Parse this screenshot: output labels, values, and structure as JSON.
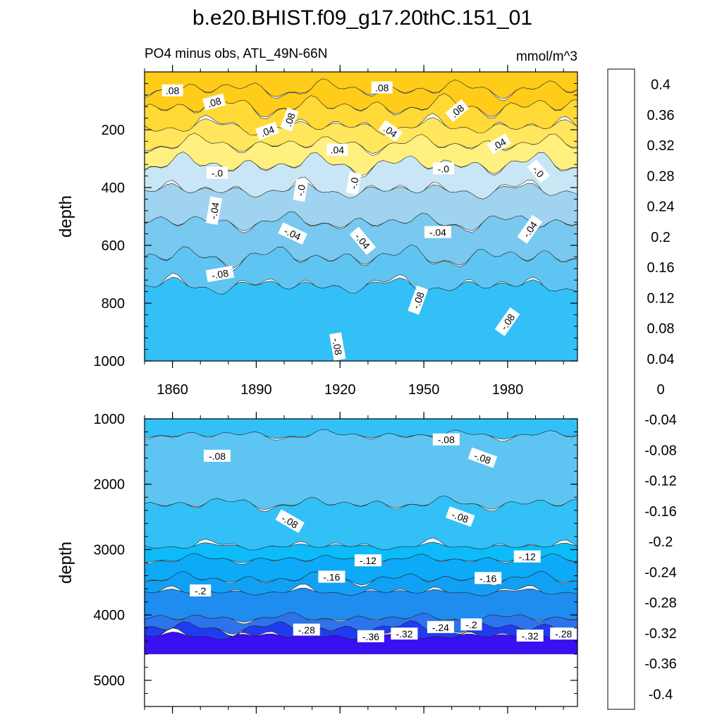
{
  "chart_data": {
    "type": "heatmap",
    "title": "b.e20.BHIST.f09_g17.20thC.151_01",
    "subtitle_left": "PO4 minus obs, ATL_49N-66N",
    "subtitle_right": "mmol/m^3",
    "colorbar": {
      "levels": [
        -0.42,
        -0.4,
        -0.38,
        -0.36,
        -0.34,
        -0.32,
        -0.3,
        -0.28,
        -0.26,
        -0.24,
        -0.22,
        -0.2,
        -0.18,
        -0.16,
        -0.14,
        -0.12,
        -0.1,
        -0.08,
        -0.06,
        -0.04,
        -0.02,
        0,
        0.02,
        0.04,
        0.06,
        0.08,
        0.1,
        0.12,
        0.14,
        0.16,
        0.18,
        0.2,
        0.22,
        0.24,
        0.26,
        0.28,
        0.3,
        0.32,
        0.34,
        0.36,
        0.38,
        0.4,
        0.42
      ],
      "colors": [
        "#8a2be2",
        "#6a1fe0",
        "#4f10e6",
        "#3a0ff0",
        "#1f10f5",
        "#0a1ef5",
        "#1f3cf0",
        "#3350e6",
        "#3d64e6",
        "#2d74ec",
        "#2484f0",
        "#1f8cf0",
        "#1896f2",
        "#12a0f5",
        "#0caaf7",
        "#0dbbf8",
        "#33c0f7",
        "#5ec5f2",
        "#78c8ef",
        "#9fd3ef",
        "#c8e6f5",
        "#fff9b0",
        "#fff080",
        "#ffe65c",
        "#ffd936",
        "#ffcc1a",
        "#ffbd0d",
        "#ffad00",
        "#ff9d00",
        "#ff8c00",
        "#ff7a00",
        "#ff6600",
        "#ff4f00",
        "#ff3300",
        "#ff1a00",
        "#ff0000",
        "#ee0000",
        "#dd0000",
        "#cc1111",
        "#dd4444",
        "#ee7777",
        "#ffb0b0"
      ],
      "tick_labels": [
        "-0.4",
        "-0.36",
        "-0.32",
        "-0.28",
        "-0.24",
        "-0.2",
        "-0.16",
        "-0.12",
        "-0.08",
        "-0.04",
        "0",
        "0.04",
        "0.08",
        "0.12",
        "0.16",
        "0.2",
        "0.24",
        "0.28",
        "0.32",
        "0.36",
        "0.4"
      ],
      "tick_values": [
        -0.4,
        -0.36,
        -0.32,
        -0.28,
        -0.24,
        -0.2,
        -0.16,
        -0.12,
        -0.08,
        -0.04,
        0,
        0.04,
        0.08,
        0.12,
        0.16,
        0.2,
        0.24,
        0.28,
        0.32,
        0.36,
        0.4
      ]
    },
    "x": {
      "range": [
        1850,
        2005
      ],
      "tick_values": [
        1860,
        1890,
        1920,
        1950,
        1980
      ],
      "tick_labels": [
        "1860",
        "1890",
        "1920",
        "1950",
        "1980"
      ]
    },
    "panels": [
      {
        "name": "upper",
        "ylabel": "depth",
        "ylim": [
          0,
          1000
        ],
        "inverted": true,
        "y_tick_values": [
          200,
          400,
          600,
          800,
          1000
        ],
        "y_tick_labels": [
          "200",
          "400",
          "600",
          "800",
          "1000"
        ],
        "bands": [
          {
            "top": 0,
            "bottom": 60,
            "value": 0.09
          },
          {
            "top": 60,
            "bottom": 120,
            "value": 0.08
          },
          {
            "top": 120,
            "bottom": 190,
            "value": 0.06
          },
          {
            "top": 190,
            "bottom": 250,
            "value": 0.04
          },
          {
            "top": 250,
            "bottom": 320,
            "value": 0.02
          },
          {
            "top": 320,
            "bottom": 410,
            "value": -0.02
          },
          {
            "top": 410,
            "bottom": 520,
            "value": -0.04
          },
          {
            "top": 520,
            "bottom": 640,
            "value": -0.06
          },
          {
            "top": 640,
            "bottom": 740,
            "value": -0.08
          },
          {
            "top": 740,
            "bottom": 1000,
            "value": -0.1
          }
        ],
        "contour_labels": [
          {
            "text": ".08",
            "x": 1860,
            "depth": 65,
            "angle": 0
          },
          {
            "text": ".08",
            "x": 1875,
            "depth": 105,
            "angle": -15
          },
          {
            "text": ".08",
            "x": 1935,
            "depth": 55,
            "angle": 0
          },
          {
            "text": ".08",
            "x": 1962,
            "depth": 135,
            "angle": -40
          },
          {
            "text": ".08",
            "x": 1902,
            "depth": 165,
            "angle": -70
          },
          {
            "text": ".04",
            "x": 1894,
            "depth": 205,
            "angle": -20
          },
          {
            "text": ".04",
            "x": 1938,
            "depth": 205,
            "angle": 35
          },
          {
            "text": ".04",
            "x": 1919,
            "depth": 270,
            "angle": 0
          },
          {
            "text": ".04",
            "x": 1977,
            "depth": 250,
            "angle": -30
          },
          {
            "text": "-.0",
            "x": 1876,
            "depth": 350,
            "angle": 0
          },
          {
            "text": "-.0",
            "x": 1906,
            "depth": 410,
            "angle": -80
          },
          {
            "text": "-.0",
            "x": 1925,
            "depth": 385,
            "angle": -80
          },
          {
            "text": "-.0",
            "x": 1957,
            "depth": 335,
            "angle": 0
          },
          {
            "text": "-.0",
            "x": 1991,
            "depth": 345,
            "angle": 50
          },
          {
            "text": "-.04",
            "x": 1875,
            "depth": 480,
            "angle": -80
          },
          {
            "text": "-.04",
            "x": 1903,
            "depth": 560,
            "angle": 25
          },
          {
            "text": "-.04",
            "x": 1928,
            "depth": 585,
            "angle": 50
          },
          {
            "text": "-.04",
            "x": 1955,
            "depth": 555,
            "angle": 0
          },
          {
            "text": "-.04",
            "x": 1988,
            "depth": 545,
            "angle": -55
          },
          {
            "text": "-.08",
            "x": 1877,
            "depth": 700,
            "angle": -10
          },
          {
            "text": "-.08",
            "x": 1948,
            "depth": 790,
            "angle": -70
          },
          {
            "text": "-.08",
            "x": 1980,
            "depth": 865,
            "angle": -55
          },
          {
            "text": "-.08",
            "x": 1919,
            "depth": 950,
            "angle": 80
          }
        ]
      },
      {
        "name": "lower",
        "ylabel": "depth",
        "ylim": [
          1000,
          5400
        ],
        "inverted": true,
        "y_tick_values": [
          1000,
          2000,
          3000,
          4000,
          5000
        ],
        "y_tick_labels": [
          "1000",
          "2000",
          "3000",
          "4000",
          "5000"
        ],
        "data_bottom": 4600,
        "bands": [
          {
            "top": 1000,
            "bottom": 1250,
            "value": -0.1
          },
          {
            "top": 1250,
            "bottom": 2300,
            "value": -0.08
          },
          {
            "top": 2300,
            "bottom": 2950,
            "value": -0.1
          },
          {
            "top": 2950,
            "bottom": 3150,
            "value": -0.12
          },
          {
            "top": 3150,
            "bottom": 3450,
            "value": -0.14
          },
          {
            "top": 3450,
            "bottom": 3650,
            "value": -0.16
          },
          {
            "top": 3650,
            "bottom": 4050,
            "value": -0.2
          },
          {
            "top": 4050,
            "bottom": 4200,
            "value": -0.24
          },
          {
            "top": 4200,
            "bottom": 4320,
            "value": -0.3
          },
          {
            "top": 4320,
            "bottom": 4600,
            "value": -0.36
          }
        ],
        "contour_labels": [
          {
            "text": "-.08",
            "x": 1876,
            "depth": 1570,
            "angle": 0
          },
          {
            "text": "-.08",
            "x": 1958,
            "depth": 1320,
            "angle": 0
          },
          {
            "text": "-.08",
            "x": 1971,
            "depth": 1600,
            "angle": 20
          },
          {
            "text": "-.08",
            "x": 1902,
            "depth": 2570,
            "angle": 30
          },
          {
            "text": "-.08",
            "x": 1963,
            "depth": 2500,
            "angle": 20
          },
          {
            "text": "-.12",
            "x": 1930,
            "depth": 3170,
            "angle": 0
          },
          {
            "text": "-.12",
            "x": 1987,
            "depth": 3110,
            "angle": 0
          },
          {
            "text": "-.16",
            "x": 1917,
            "depth": 3420,
            "angle": 0
          },
          {
            "text": "-.16",
            "x": 1973,
            "depth": 3440,
            "angle": 0
          },
          {
            "text": "-.2",
            "x": 1870,
            "depth": 3630,
            "angle": 0
          },
          {
            "text": "-.28",
            "x": 1908,
            "depth": 4230,
            "angle": 0
          },
          {
            "text": "-.36",
            "x": 1931,
            "depth": 4330,
            "angle": 0
          },
          {
            "text": "-.32",
            "x": 1943,
            "depth": 4290,
            "angle": 0
          },
          {
            "text": "-.24",
            "x": 1956,
            "depth": 4190,
            "angle": 0
          },
          {
            "text": "-.2",
            "x": 1967,
            "depth": 4150,
            "angle": 0
          },
          {
            "text": "-.32",
            "x": 1988,
            "depth": 4320,
            "angle": 0
          },
          {
            "text": "-.28",
            "x": 2000,
            "depth": 4290,
            "angle": 0
          }
        ]
      }
    ]
  }
}
